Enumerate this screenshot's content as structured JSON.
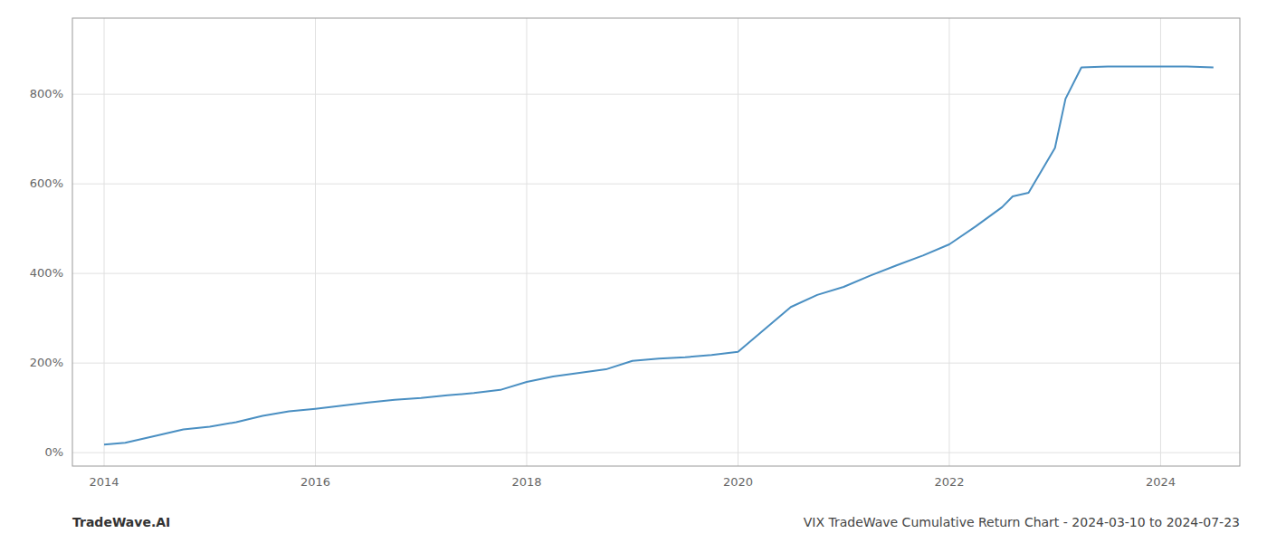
{
  "chart_data": {
    "type": "line",
    "x": [
      2014.0,
      2014.2,
      2014.5,
      2014.75,
      2015.0,
      2015.25,
      2015.5,
      2015.75,
      2016.0,
      2016.25,
      2016.5,
      2016.75,
      2017.0,
      2017.25,
      2017.5,
      2017.75,
      2018.0,
      2018.25,
      2018.5,
      2018.75,
      2019.0,
      2019.1,
      2019.25,
      2019.5,
      2019.75,
      2020.0,
      2020.25,
      2020.5,
      2020.75,
      2021.0,
      2021.25,
      2021.5,
      2021.75,
      2022.0,
      2022.25,
      2022.5,
      2022.6,
      2022.75,
      2023.0,
      2023.1,
      2023.25,
      2023.5,
      2023.75,
      2024.0,
      2024.25,
      2024.5
    ],
    "values": [
      18,
      22,
      38,
      52,
      58,
      68,
      82,
      92,
      98,
      105,
      112,
      118,
      122,
      128,
      133,
      140,
      158,
      170,
      178,
      186,
      205,
      207,
      210,
      213,
      218,
      225,
      275,
      325,
      352,
      370,
      395,
      418,
      440,
      465,
      505,
      548,
      572,
      580,
      680,
      790,
      860,
      862,
      862,
      862,
      862,
      860
    ],
    "color": "#4a8fc2",
    "xlim": [
      2013.7,
      2024.75
    ],
    "ylim": [
      -30,
      970
    ],
    "xticks": [
      2014,
      2016,
      2018,
      2020,
      2022,
      2024
    ],
    "yticks": [
      {
        "value": 0,
        "label": "0%"
      },
      {
        "value": 200,
        "label": "200%"
      },
      {
        "value": 400,
        "label": "400%"
      },
      {
        "value": 600,
        "label": "600%"
      },
      {
        "value": 800,
        "label": "800%"
      }
    ],
    "grid": true,
    "annotations": [
      "TradeWave.AI",
      "VIX TradeWave Cumulative Return Chart - 2024-03-10 to 2024-07-23"
    ]
  }
}
